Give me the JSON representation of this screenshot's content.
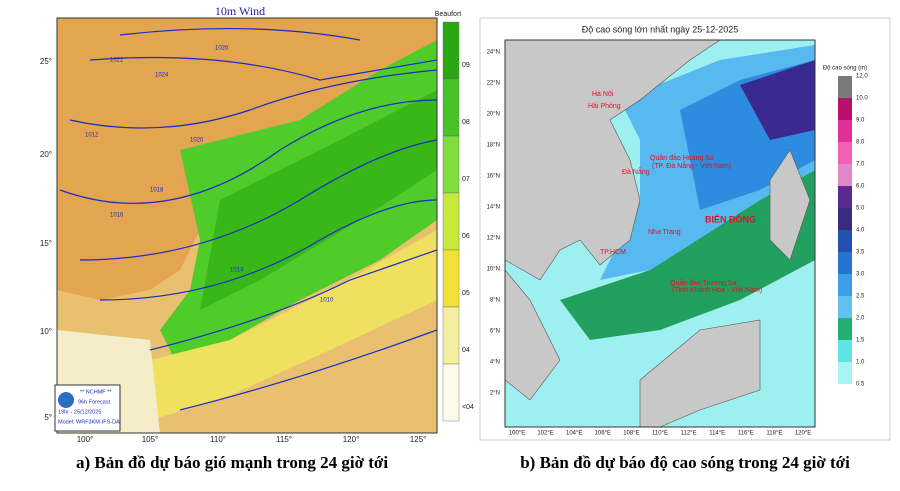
{
  "wind_map": {
    "title": "10m Wind",
    "colorbar_title": "Beaufort",
    "colorbar_labels": [
      "09",
      "08",
      "07",
      "06",
      "05",
      "04",
      "<04"
    ],
    "lat_labels": [
      "25°",
      "20°",
      "15°",
      "10°",
      "5°"
    ],
    "lon_labels": [
      "100°",
      "105°",
      "110°",
      "115°",
      "120°",
      "125°"
    ],
    "isobars": [
      "1026",
      "1024",
      "1022",
      "1020",
      "1018",
      "1016",
      "1014",
      "1012",
      "1010"
    ],
    "logo": [
      "** NCHMF **",
      "96h Forecast",
      "19hr - 25/12/2025",
      "Model: WRF3KM-IFS-DA"
    ],
    "caption": "a) Bản đồ dự báo gió mạnh trong 24 giờ tới"
  },
  "wave_map": {
    "title": "Độ cao sóng lớn nhất ngày 25-12-2025",
    "colorbar_title": "Độ cao sóng (m)",
    "colorbar_labels": [
      "0.5",
      "1.0",
      "1.5",
      "2.0",
      "2.5",
      "3.0",
      "3.5",
      "4.0",
      "5.0",
      "6.0",
      "7.0",
      "8.0",
      "9.0",
      "10.0",
      "12.0"
    ],
    "lat_labels": [
      "24°N",
      "22°N",
      "20°N",
      "18°N",
      "16°N",
      "14°N",
      "12°N",
      "10°N",
      "8°N",
      "6°N",
      "4°N",
      "2°N"
    ],
    "lon_labels": [
      "100°E",
      "102°E",
      "104°E",
      "106°E",
      "108°E",
      "110°E",
      "112°E",
      "114°E",
      "116°E",
      "118°E",
      "120°E"
    ],
    "places": [
      "Hà Nội",
      "Hải Phòng",
      "Quần đảo Hoàng Sa",
      "(TP. Đà Nẵng - Việt Nam)",
      "Đà Nẵng",
      "BIỂN ĐÔNG",
      "Nha Trang",
      "TP.HCM",
      "Quần đảo Trường Sa",
      "(Tỉnh Khánh Hòa - Việt Nam)"
    ],
    "caption": "b) Bản đồ dự báo độ cao sóng trong 24 giờ tới"
  }
}
